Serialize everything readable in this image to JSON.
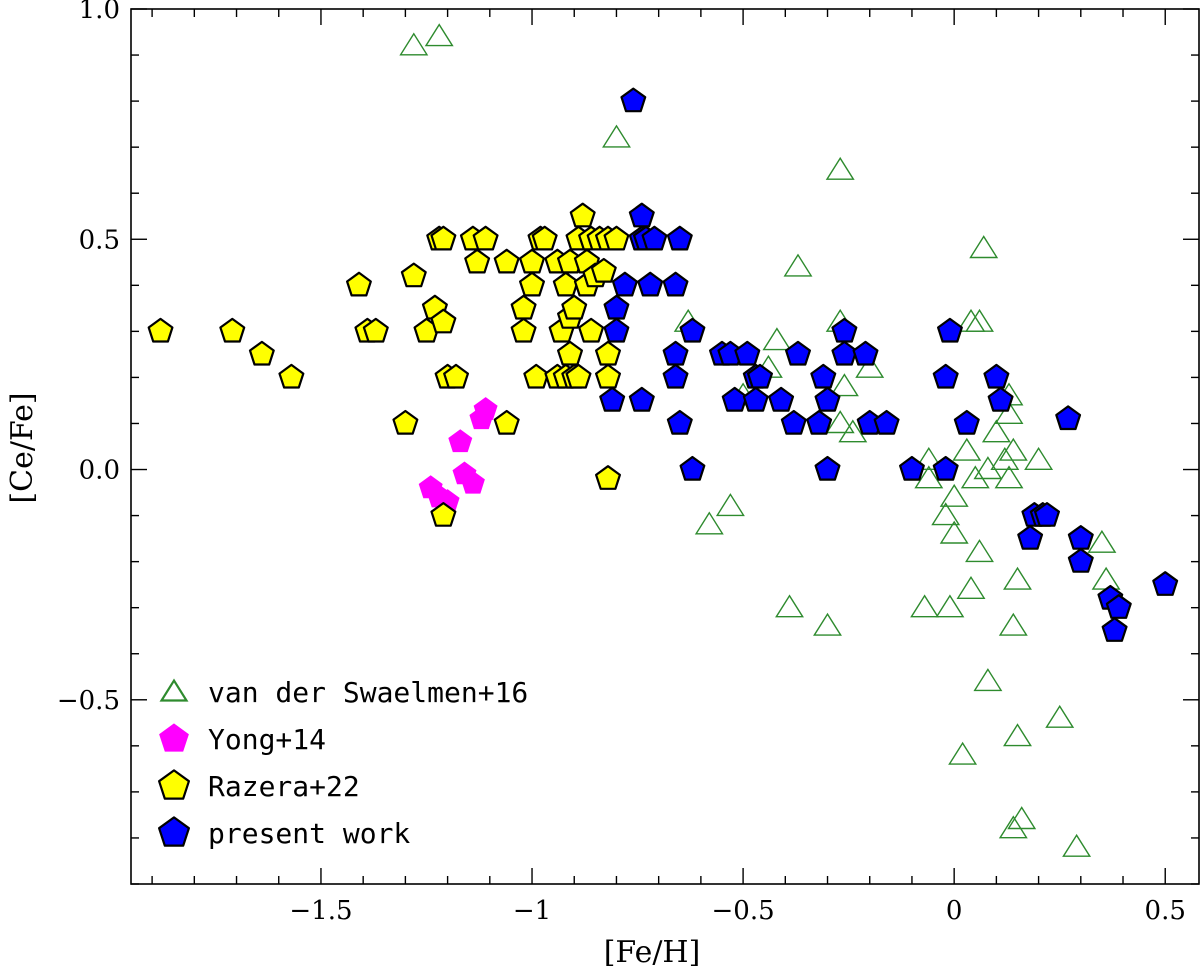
{
  "chart_data": {
    "type": "scatter",
    "title": "",
    "xlabel": "[Fe/H]",
    "ylabel": "[Ce/Fe]",
    "xlim": [
      -1.95,
      0.58
    ],
    "ylim": [
      -0.9,
      1.0
    ],
    "x_ticks": [
      -1.5,
      -1,
      -0.5,
      0,
      0.5
    ],
    "x_tick_labels": [
      "−1.5",
      "−1",
      "−0.5",
      "0",
      "0.5"
    ],
    "y_ticks": [
      -0.5,
      0.0,
      0.5,
      1.0
    ],
    "y_tick_labels": [
      "−0.5",
      "0.0",
      "0.5",
      "1.0"
    ],
    "grid": false,
    "legend_position": "bottom-left",
    "series": [
      {
        "name": "van der Swaelmen+16",
        "marker": "open-triangle",
        "color": "#2e8b2e",
        "points": [
          [
            -1.28,
            0.92
          ],
          [
            -1.22,
            0.94
          ],
          [
            -0.8,
            0.72
          ],
          [
            -0.27,
            0.65
          ],
          [
            -0.37,
            0.44
          ],
          [
            0.07,
            0.48
          ],
          [
            -0.63,
            0.32
          ],
          [
            -0.42,
            0.28
          ],
          [
            -0.27,
            0.32
          ],
          [
            -0.44,
            0.22
          ],
          [
            -0.2,
            0.22
          ],
          [
            -0.26,
            0.18
          ],
          [
            -0.5,
            0.16
          ],
          [
            -0.27,
            0.1
          ],
          [
            -0.24,
            0.08
          ],
          [
            0.04,
            0.32
          ],
          [
            0.06,
            0.32
          ],
          [
            0.13,
            0.16
          ],
          [
            0.13,
            0.12
          ],
          [
            0.1,
            0.08
          ],
          [
            0.14,
            0.04
          ],
          [
            0.2,
            0.02
          ],
          [
            0.12,
            0.02
          ],
          [
            -0.06,
            0.02
          ],
          [
            0.03,
            0.04
          ],
          [
            0.05,
            -0.02
          ],
          [
            0.08,
            0.0
          ],
          [
            0.13,
            -0.02
          ],
          [
            -0.06,
            -0.02
          ],
          [
            0.0,
            -0.06
          ],
          [
            -0.02,
            -0.1
          ],
          [
            0.0,
            -0.14
          ],
          [
            0.06,
            -0.18
          ],
          [
            -0.58,
            -0.12
          ],
          [
            -0.53,
            -0.08
          ],
          [
            0.35,
            -0.16
          ],
          [
            0.36,
            -0.24
          ],
          [
            0.15,
            -0.24
          ],
          [
            0.04,
            -0.26
          ],
          [
            -0.07,
            -0.3
          ],
          [
            -0.01,
            -0.3
          ],
          [
            -0.39,
            -0.3
          ],
          [
            -0.3,
            -0.34
          ],
          [
            0.14,
            -0.34
          ],
          [
            0.08,
            -0.46
          ],
          [
            0.25,
            -0.54
          ],
          [
            0.15,
            -0.58
          ],
          [
            0.02,
            -0.62
          ],
          [
            0.16,
            -0.76
          ],
          [
            0.14,
            -0.78
          ],
          [
            0.29,
            -0.82
          ]
        ]
      },
      {
        "name": "Yong+14",
        "marker": "filled-pentagon",
        "color": "#ff00ff",
        "points": [
          [
            -1.24,
            -0.04
          ],
          [
            -1.22,
            -0.06
          ],
          [
            -1.2,
            -0.07
          ],
          [
            -1.16,
            -0.01
          ],
          [
            -1.14,
            -0.03
          ],
          [
            -1.17,
            0.06
          ],
          [
            -1.12,
            0.11
          ],
          [
            -1.11,
            0.13
          ]
        ]
      },
      {
        "name": "Razera+22",
        "marker": "filled-pentagon",
        "color": "#ffff00",
        "points": [
          [
            -1.88,
            0.3
          ],
          [
            -1.71,
            0.3
          ],
          [
            -1.64,
            0.25
          ],
          [
            -1.57,
            0.2
          ],
          [
            -1.41,
            0.4
          ],
          [
            -1.39,
            0.3
          ],
          [
            -1.37,
            0.3
          ],
          [
            -1.3,
            0.1
          ],
          [
            -1.28,
            0.42
          ],
          [
            -1.25,
            0.3
          ],
          [
            -1.23,
            0.35
          ],
          [
            -1.21,
            0.32
          ],
          [
            -1.22,
            0.5
          ],
          [
            -1.21,
            0.5
          ],
          [
            -1.2,
            0.2
          ],
          [
            -1.18,
            0.2
          ],
          [
            -1.14,
            0.5
          ],
          [
            -1.13,
            0.45
          ],
          [
            -1.11,
            0.5
          ],
          [
            -1.06,
            0.45
          ],
          [
            -1.06,
            0.1
          ],
          [
            -1.21,
            -0.1
          ],
          [
            -1.02,
            0.35
          ],
          [
            -1.02,
            0.3
          ],
          [
            -1.0,
            0.4
          ],
          [
            -1.0,
            0.45
          ],
          [
            -0.98,
            0.5
          ],
          [
            -0.97,
            0.5
          ],
          [
            -0.94,
            0.45
          ],
          [
            -0.99,
            0.2
          ],
          [
            -0.94,
            0.2
          ],
          [
            -0.93,
            0.3
          ],
          [
            -0.92,
            0.4
          ],
          [
            -0.91,
            0.45
          ],
          [
            -0.91,
            0.33
          ],
          [
            -0.9,
            0.35
          ],
          [
            -0.92,
            0.2
          ],
          [
            -0.9,
            0.2
          ],
          [
            -0.89,
            0.5
          ],
          [
            -0.89,
            0.2
          ],
          [
            -0.88,
            0.55
          ],
          [
            -0.87,
            0.45
          ],
          [
            -0.87,
            0.4
          ],
          [
            -0.86,
            0.5
          ],
          [
            -0.85,
            0.42
          ],
          [
            -0.84,
            0.5
          ],
          [
            -0.83,
            0.43
          ],
          [
            -0.82,
            0.5
          ],
          [
            -0.8,
            0.5
          ],
          [
            -0.91,
            0.25
          ],
          [
            -0.86,
            0.3
          ],
          [
            -0.82,
            0.25
          ],
          [
            -0.82,
            0.2
          ],
          [
            -0.82,
            -0.02
          ]
        ]
      },
      {
        "name": "present work",
        "marker": "filled-pentagon",
        "color": "#0000ff",
        "points": [
          [
            -0.76,
            0.8
          ],
          [
            -0.74,
            0.55
          ],
          [
            -0.74,
            0.5
          ],
          [
            -0.73,
            0.5
          ],
          [
            -0.71,
            0.5
          ],
          [
            -0.65,
            0.5
          ],
          [
            -0.78,
            0.4
          ],
          [
            -0.72,
            0.4
          ],
          [
            -0.66,
            0.4
          ],
          [
            -0.8,
            0.35
          ],
          [
            -0.8,
            0.3
          ],
          [
            -0.62,
            0.3
          ],
          [
            -0.55,
            0.25
          ],
          [
            -0.53,
            0.25
          ],
          [
            -0.49,
            0.25
          ],
          [
            -0.66,
            0.25
          ],
          [
            -0.66,
            0.2
          ],
          [
            -0.47,
            0.2
          ],
          [
            -0.46,
            0.2
          ],
          [
            -0.81,
            0.15
          ],
          [
            -0.74,
            0.15
          ],
          [
            -0.52,
            0.15
          ],
          [
            -0.47,
            0.15
          ],
          [
            -0.65,
            0.1
          ],
          [
            -0.62,
            0.0
          ],
          [
            -0.41,
            0.15
          ],
          [
            -0.38,
            0.1
          ],
          [
            -0.37,
            0.25
          ],
          [
            -0.31,
            0.2
          ],
          [
            -0.3,
            0.15
          ],
          [
            -0.32,
            0.1
          ],
          [
            -0.26,
            0.3
          ],
          [
            -0.26,
            0.25
          ],
          [
            -0.21,
            0.25
          ],
          [
            -0.2,
            0.1
          ],
          [
            -0.16,
            0.1
          ],
          [
            -0.3,
            0.0
          ],
          [
            -0.1,
            0.0
          ],
          [
            -0.01,
            0.3
          ],
          [
            -0.02,
            0.2
          ],
          [
            0.03,
            0.1
          ],
          [
            -0.02,
            0.0
          ],
          [
            0.1,
            0.2
          ],
          [
            0.11,
            0.15
          ],
          [
            0.27,
            0.11
          ],
          [
            0.19,
            -0.1
          ],
          [
            0.21,
            -0.1
          ],
          [
            0.22,
            -0.1
          ],
          [
            0.18,
            -0.15
          ],
          [
            0.3,
            -0.15
          ],
          [
            0.3,
            -0.2
          ],
          [
            0.37,
            -0.28
          ],
          [
            0.39,
            -0.3
          ],
          [
            0.38,
            -0.35
          ],
          [
            0.5,
            -0.25
          ]
        ]
      }
    ]
  }
}
